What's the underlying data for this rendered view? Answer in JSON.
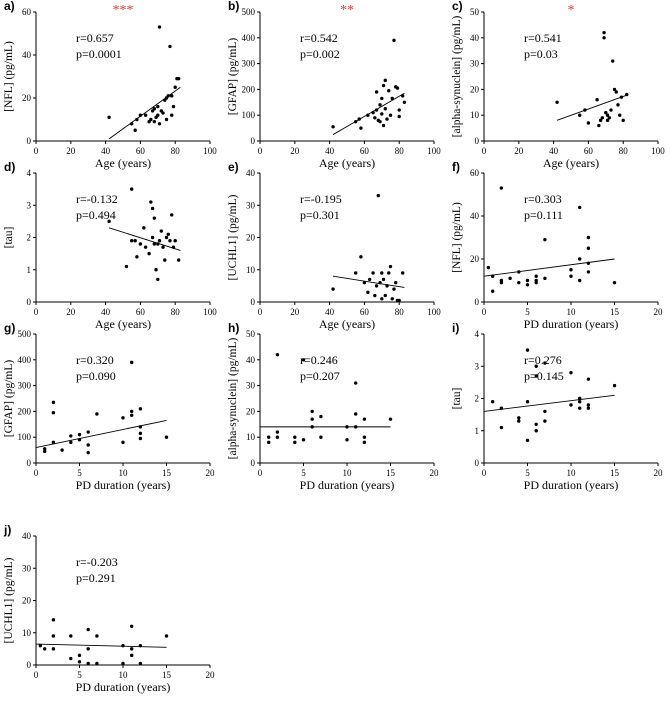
{
  "chart_data": [
    {
      "type": "scatter",
      "panel": "a)",
      "significance": "***",
      "r": "r=0.657",
      "p": "p=0.0001",
      "xlabel": "Age (years)",
      "ylabel": "[NFL] (pg/mL)",
      "xlim": [
        0,
        100
      ],
      "ylim": [
        0,
        60
      ],
      "xticks": [
        0,
        20,
        40,
        60,
        80,
        100
      ],
      "yticks": [
        0,
        20,
        40,
        60
      ],
      "points": [
        [
          42,
          11
        ],
        [
          55,
          8
        ],
        [
          57,
          5
        ],
        [
          58,
          10
        ],
        [
          60,
          12
        ],
        [
          63,
          12
        ],
        [
          65,
          9
        ],
        [
          66,
          10
        ],
        [
          67,
          14
        ],
        [
          68,
          9
        ],
        [
          68,
          15
        ],
        [
          69,
          11
        ],
        [
          70,
          16
        ],
        [
          70,
          12
        ],
        [
          71,
          8
        ],
        [
          71,
          53
        ],
        [
          72,
          14
        ],
        [
          73,
          13
        ],
        [
          74,
          19
        ],
        [
          75,
          20
        ],
        [
          75,
          10
        ],
        [
          76,
          21
        ],
        [
          77,
          44
        ],
        [
          78,
          12
        ],
        [
          78,
          21
        ],
        [
          79,
          16
        ],
        [
          80,
          25
        ],
        [
          81,
          29
        ],
        [
          82,
          29
        ]
      ],
      "fit": [
        [
          42,
          1
        ],
        [
          83,
          25
        ]
      ]
    },
    {
      "type": "scatter",
      "panel": "b)",
      "significance": "**",
      "r": "r=0.542",
      "p": "p=0.002",
      "xlabel": "Age (years)",
      "ylabel": "[GFAP] (pg/mL)",
      "xlim": [
        0,
        100
      ],
      "ylim": [
        0,
        500
      ],
      "xticks": [
        0,
        20,
        40,
        60,
        80,
        100
      ],
      "yticks": [
        0,
        100,
        200,
        300,
        400,
        500
      ],
      "points": [
        [
          42,
          55
        ],
        [
          55,
          75
        ],
        [
          57,
          85
        ],
        [
          58,
          50
        ],
        [
          62,
          100
        ],
        [
          65,
          110
        ],
        [
          66,
          90
        ],
        [
          67,
          120
        ],
        [
          67,
          190
        ],
        [
          68,
          80
        ],
        [
          69,
          75
        ],
        [
          69,
          140
        ],
        [
          70,
          105
        ],
        [
          70,
          165
        ],
        [
          71,
          215
        ],
        [
          71,
          60
        ],
        [
          72,
          125
        ],
        [
          72,
          235
        ],
        [
          73,
          85
        ],
        [
          74,
          195
        ],
        [
          75,
          100
        ],
        [
          76,
          165
        ],
        [
          77,
          390
        ],
        [
          78,
          210
        ],
        [
          79,
          205
        ],
        [
          80,
          120
        ],
        [
          80,
          95
        ],
        [
          82,
          175
        ],
        [
          83,
          150
        ]
      ],
      "fit": [
        [
          42,
          25
        ],
        [
          83,
          185
        ]
      ]
    },
    {
      "type": "scatter",
      "panel": "c)",
      "significance": "*",
      "r": "r=0.541",
      "p": "p=0.03",
      "xlabel": "Age (years)",
      "ylabel": "[alpha-synuclein] (pg/mL)",
      "xlim": [
        0,
        100
      ],
      "ylim": [
        0,
        50
      ],
      "xticks": [
        0,
        20,
        40,
        60,
        80,
        100
      ],
      "yticks": [
        0,
        10,
        20,
        30,
        40,
        50
      ],
      "points": [
        [
          42,
          15
        ],
        [
          55,
          10
        ],
        [
          58,
          12
        ],
        [
          60,
          7
        ],
        [
          65,
          16
        ],
        [
          66,
          6
        ],
        [
          67,
          8
        ],
        [
          68,
          9
        ],
        [
          69,
          42
        ],
        [
          69,
          40
        ],
        [
          70,
          11
        ],
        [
          71,
          10
        ],
        [
          71,
          8
        ],
        [
          72,
          9
        ],
        [
          73,
          12
        ],
        [
          74,
          31
        ],
        [
          75,
          20
        ],
        [
          76,
          19
        ],
        [
          77,
          14
        ],
        [
          78,
          10
        ],
        [
          79,
          17
        ],
        [
          80,
          8
        ],
        [
          82,
          18
        ]
      ],
      "fit": [
        [
          42,
          8
        ],
        [
          83,
          18
        ]
      ]
    },
    {
      "type": "scatter",
      "panel": "d)",
      "significance": "",
      "r": "r=-0.132",
      "p": "p=0.494",
      "xlabel": "Age (years)",
      "ylabel": "[tau]",
      "xlim": [
        0,
        100
      ],
      "ylim": [
        0,
        4
      ],
      "xticks": [
        0,
        20,
        40,
        60,
        80,
        100
      ],
      "yticks": [
        0,
        1,
        2,
        3,
        4
      ],
      "points": [
        [
          42,
          2.5
        ],
        [
          52,
          1.1
        ],
        [
          55,
          3.5
        ],
        [
          55,
          1.9
        ],
        [
          57,
          1.9
        ],
        [
          58,
          1.4
        ],
        [
          60,
          1.8
        ],
        [
          62,
          2.3
        ],
        [
          63,
          1.7
        ],
        [
          65,
          1.5
        ],
        [
          66,
          3.1
        ],
        [
          67,
          2.9
        ],
        [
          67,
          2.0
        ],
        [
          68,
          1.8
        ],
        [
          68,
          2.6
        ],
        [
          69,
          1.0
        ],
        [
          70,
          1.8
        ],
        [
          70,
          0.7
        ],
        [
          71,
          1.9
        ],
        [
          72,
          2.2
        ],
        [
          73,
          1.7
        ],
        [
          74,
          1.3
        ],
        [
          75,
          2.0
        ],
        [
          76,
          2.1
        ],
        [
          77,
          1.9
        ],
        [
          78,
          2.7
        ],
        [
          79,
          1.7
        ],
        [
          80,
          1.9
        ],
        [
          82,
          1.3
        ]
      ],
      "fit": [
        [
          42,
          2.3
        ],
        [
          83,
          1.6
        ]
      ]
    },
    {
      "type": "scatter",
      "panel": "e)",
      "significance": "",
      "r": "r=-0.195",
      "p": "p=0.301",
      "xlabel": "Age (years)",
      "ylabel": "[UCHL1] (pg/mL)",
      "xlim": [
        0,
        100
      ],
      "ylim": [
        0,
        40
      ],
      "xticks": [
        0,
        20,
        40,
        60,
        80,
        100
      ],
      "yticks": [
        0,
        10,
        20,
        30,
        40
      ],
      "points": [
        [
          42,
          4
        ],
        [
          55,
          9
        ],
        [
          58,
          14
        ],
        [
          60,
          6
        ],
        [
          62,
          3
        ],
        [
          63,
          7
        ],
        [
          65,
          9
        ],
        [
          66,
          2
        ],
        [
          67,
          5
        ],
        [
          68,
          33
        ],
        [
          69,
          6
        ],
        [
          70,
          9
        ],
        [
          70,
          1
        ],
        [
          71,
          7
        ],
        [
          72,
          2
        ],
        [
          73,
          5
        ],
        [
          74,
          9
        ],
        [
          75,
          11
        ],
        [
          76,
          1
        ],
        [
          77,
          4
        ],
        [
          78,
          6
        ],
        [
          79,
          0.5
        ],
        [
          80,
          0.5
        ],
        [
          82,
          9
        ]
      ],
      "fit": [
        [
          42,
          8
        ],
        [
          83,
          4.5
        ]
      ]
    },
    {
      "type": "scatter",
      "panel": "f)",
      "significance": "",
      "r": "r=0.303",
      "p": "p=0.111",
      "xlabel": "PD duration (years)",
      "ylabel": "[NFL] (pg/mL)",
      "xlim": [
        0,
        20
      ],
      "ylim": [
        0,
        60
      ],
      "xticks": [
        0,
        5,
        10,
        15,
        20
      ],
      "yticks": [
        0,
        20,
        40,
        60
      ],
      "points": [
        [
          0.5,
          16
        ],
        [
          1,
          5
        ],
        [
          1,
          12
        ],
        [
          2,
          53
        ],
        [
          2,
          10
        ],
        [
          2,
          9
        ],
        [
          3,
          11
        ],
        [
          4,
          14
        ],
        [
          4,
          9
        ],
        [
          5,
          10
        ],
        [
          5,
          8
        ],
        [
          6,
          12
        ],
        [
          6,
          10
        ],
        [
          6,
          9
        ],
        [
          7,
          29
        ],
        [
          7,
          11
        ],
        [
          10,
          15
        ],
        [
          10,
          12
        ],
        [
          11,
          10
        ],
        [
          11,
          44
        ],
        [
          11,
          20
        ],
        [
          12,
          30
        ],
        [
          12,
          25
        ],
        [
          12,
          18
        ],
        [
          12,
          14
        ],
        [
          15,
          9
        ]
      ],
      "fit": [
        [
          0,
          12
        ],
        [
          15,
          20
        ]
      ]
    },
    {
      "type": "scatter",
      "panel": "g)",
      "significance": "",
      "r": "r=0.320",
      "p": "p=0.090",
      "xlabel": "PD duration (years)",
      "ylabel": "[GFAP] (pg/mL)",
      "xlim": [
        0,
        20
      ],
      "ylim": [
        0,
        500
      ],
      "xticks": [
        0,
        5,
        10,
        15,
        20
      ],
      "yticks": [
        0,
        100,
        200,
        300,
        400,
        500
      ],
      "points": [
        [
          1,
          55
        ],
        [
          1,
          45
        ],
        [
          2,
          235
        ],
        [
          2,
          195
        ],
        [
          2,
          80
        ],
        [
          3,
          50
        ],
        [
          4,
          105
        ],
        [
          4,
          80
        ],
        [
          5,
          90
        ],
        [
          5,
          110
        ],
        [
          6,
          70
        ],
        [
          6,
          120
        ],
        [
          6,
          40
        ],
        [
          7,
          190
        ],
        [
          10,
          175
        ],
        [
          10,
          80
        ],
        [
          11,
          200
        ],
        [
          11,
          390
        ],
        [
          11,
          185
        ],
        [
          12,
          210
        ],
        [
          12,
          140
        ],
        [
          12,
          95
        ],
        [
          12,
          115
        ],
        [
          15,
          100
        ]
      ],
      "fit": [
        [
          0,
          60
        ],
        [
          15,
          165
        ]
      ]
    },
    {
      "type": "scatter",
      "panel": "h)",
      "significance": "",
      "r": "r=0.246",
      "p": "p=0.207",
      "xlabel": "PD duration (years)",
      "ylabel": "[alpha-synuclein] (pg/mL)",
      "xlim": [
        0,
        20
      ],
      "ylim": [
        0,
        50
      ],
      "xticks": [
        0,
        5,
        10,
        15,
        20
      ],
      "yticks": [
        0,
        10,
        20,
        30,
        40,
        50
      ],
      "points": [
        [
          1,
          8
        ],
        [
          1,
          10
        ],
        [
          2,
          42
        ],
        [
          2,
          12
        ],
        [
          2,
          10
        ],
        [
          4,
          8
        ],
        [
          4,
          10
        ],
        [
          5,
          40
        ],
        [
          5,
          9
        ],
        [
          6,
          14
        ],
        [
          6,
          17
        ],
        [
          6,
          20
        ],
        [
          7,
          10
        ],
        [
          7,
          18
        ],
        [
          10,
          9
        ],
        [
          10,
          14
        ],
        [
          11,
          31
        ],
        [
          11,
          19
        ],
        [
          11,
          14
        ],
        [
          12,
          17
        ],
        [
          12,
          10
        ],
        [
          12,
          8
        ],
        [
          15,
          17
        ]
      ],
      "fit": [
        [
          0,
          14
        ],
        [
          15,
          14
        ]
      ]
    },
    {
      "type": "scatter",
      "panel": "i)",
      "significance": "",
      "r": "r=0.276",
      "p": "p=0.145",
      "xlabel": "PD duration (years)",
      "ylabel": "[tau]",
      "xlim": [
        0,
        20
      ],
      "ylim": [
        0,
        4
      ],
      "xticks": [
        0,
        5,
        10,
        15,
        20
      ],
      "yticks": [
        0,
        1,
        2,
        3,
        4
      ],
      "points": [
        [
          1,
          1.9
        ],
        [
          2,
          1.7
        ],
        [
          2,
          1.1
        ],
        [
          4,
          1.3
        ],
        [
          4,
          1.4
        ],
        [
          5,
          0.7
        ],
        [
          5,
          3.5
        ],
        [
          5,
          1.9
        ],
        [
          6,
          3.0
        ],
        [
          6,
          2.7
        ],
        [
          6,
          1.2
        ],
        [
          6,
          1.0
        ],
        [
          7,
          1.6
        ],
        [
          7,
          3.1
        ],
        [
          7,
          1.3
        ],
        [
          10,
          1.8
        ],
        [
          10,
          2.8
        ],
        [
          11,
          1.9
        ],
        [
          11,
          1.7
        ],
        [
          11,
          2.0
        ],
        [
          12,
          1.8
        ],
        [
          12,
          1.7
        ],
        [
          12,
          2.6
        ],
        [
          15,
          2.4
        ]
      ],
      "fit": [
        [
          0,
          1.6
        ],
        [
          15,
          2.1
        ]
      ]
    },
    {
      "type": "scatter",
      "panel": "j)",
      "significance": "",
      "r": "r=-0.203",
      "p": "p=0.291",
      "xlabel": "PD duration (years)",
      "ylabel": "[UCHL1] (pg/mL)",
      "xlim": [
        0,
        20
      ],
      "ylim": [
        0,
        40
      ],
      "xticks": [
        0,
        5,
        10,
        15,
        20
      ],
      "yticks": [
        0,
        10,
        20,
        30,
        40
      ],
      "points": [
        [
          0.5,
          6
        ],
        [
          1,
          5
        ],
        [
          2,
          14
        ],
        [
          2,
          9
        ],
        [
          2,
          5
        ],
        [
          4,
          2
        ],
        [
          4,
          9
        ],
        [
          5,
          1
        ],
        [
          5,
          3
        ],
        [
          6,
          11
        ],
        [
          6,
          5
        ],
        [
          6,
          0.5
        ],
        [
          7,
          9
        ],
        [
          7,
          0.5
        ],
        [
          10,
          0.5
        ],
        [
          10,
          6
        ],
        [
          11,
          12
        ],
        [
          11,
          5
        ],
        [
          11,
          3
        ],
        [
          12,
          6
        ],
        [
          12,
          0.5
        ],
        [
          15,
          9
        ]
      ],
      "fit": [
        [
          0,
          6.5
        ],
        [
          15,
          5.5
        ]
      ]
    }
  ]
}
